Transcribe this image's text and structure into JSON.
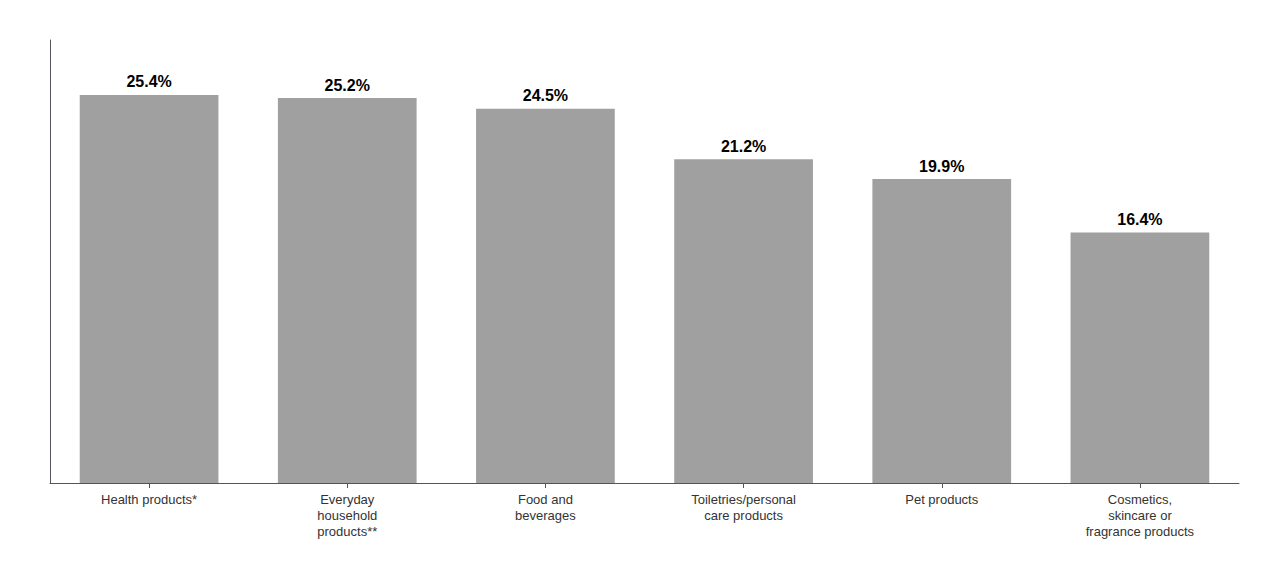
{
  "chart_data": {
    "type": "bar",
    "categories": [
      "Health products*",
      "Everyday\nhousehold\nproducts**",
      "Food and\nbeverages",
      "Toiletries/personal\ncare products",
      "Pet products",
      "Cosmetics,\nskincare or\nfragrance products"
    ],
    "values": [
      25.4,
      25.2,
      24.5,
      21.2,
      19.9,
      16.4
    ],
    "value_labels": [
      "25.4%",
      "25.2%",
      "24.5%",
      "21.2%",
      "19.9%",
      "16.4%"
    ],
    "data_labels": true,
    "color": "#A0A0A0",
    "ylim": [
      0,
      29
    ],
    "tick_labels": "x",
    "grid": false
  }
}
